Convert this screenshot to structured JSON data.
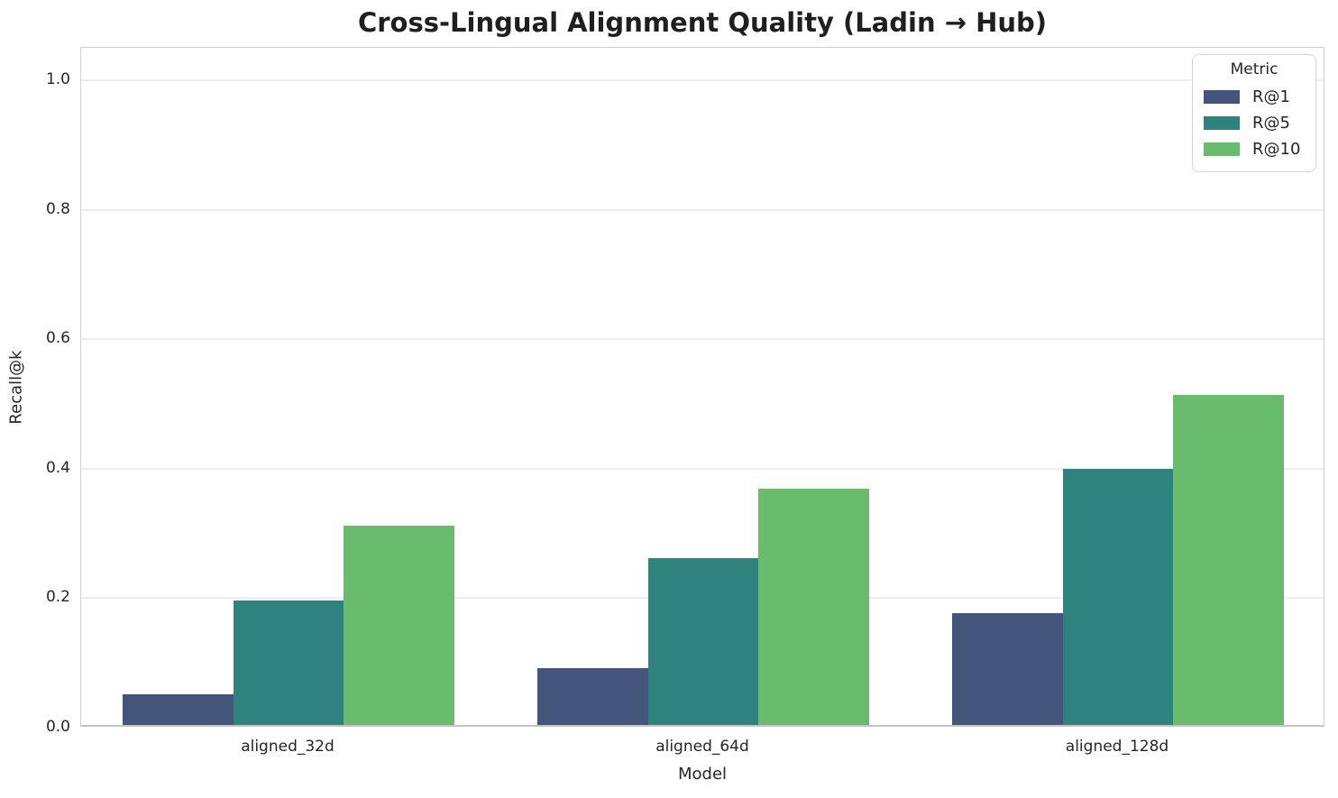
{
  "chart_data": {
    "type": "bar",
    "title": "Cross-Lingual Alignment Quality (Ladin → Hub)",
    "xlabel": "Model",
    "ylabel": "Recall@k",
    "categories": [
      "aligned_32d",
      "aligned_64d",
      "aligned_128d"
    ],
    "series": [
      {
        "name": "R@1",
        "color": "#44557C",
        "values": [
          0.047,
          0.088,
          0.173
        ]
      },
      {
        "name": "R@5",
        "color": "#2E837F",
        "values": [
          0.192,
          0.258,
          0.395
        ]
      },
      {
        "name": "R@10",
        "color": "#69BC6D",
        "values": [
          0.308,
          0.365,
          0.51
        ]
      }
    ],
    "ylim": [
      0,
      1.05
    ],
    "yticks": [
      0.0,
      0.2,
      0.4,
      0.6,
      0.8,
      1.0
    ],
    "ytick_labels": [
      "0.0",
      "0.2",
      "0.4",
      "0.6",
      "0.8",
      "1.0"
    ],
    "grid": "horizontal-on",
    "grid_color": "#ededed",
    "background_color": "#ffffff",
    "bar_group_width_fraction": 0.8,
    "legend": {
      "title": "Metric",
      "position": "upper-right"
    }
  }
}
